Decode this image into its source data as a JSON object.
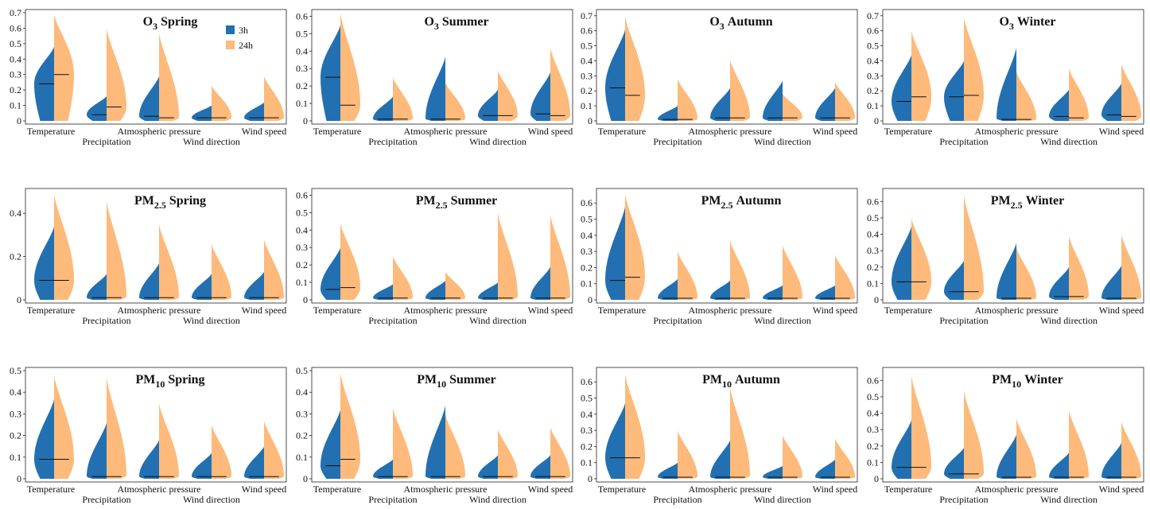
{
  "legend": {
    "entries": [
      {
        "label": "3h",
        "color": "#2270b1"
      },
      {
        "label": "24h",
        "color": "#fdba7b"
      }
    ]
  },
  "chart_data": [
    {
      "type": "violin",
      "title": {
        "main": "O",
        "sub": "3",
        "season": "Spring"
      },
      "categories": [
        "Temperature",
        "Precipitation",
        "Atmospheric pressure",
        "Wind direction",
        "Wind speed"
      ],
      "yticks": [
        "0",
        "0.1",
        "0.2",
        "0.3",
        "0.4",
        "0.5",
        "0.6",
        "0.7"
      ],
      "ylim": [
        0,
        0.7
      ],
      "series": [
        {
          "name": "3h",
          "max": [
            0.48,
            0.16,
            0.29,
            0.1,
            0.12
          ],
          "median": [
            0.24,
            0.04,
            0.03,
            0.02,
            0.02
          ]
        },
        {
          "name": "24h",
          "max": [
            0.69,
            0.6,
            0.57,
            0.23,
            0.29
          ],
          "median": [
            0.3,
            0.09,
            0.02,
            0.02,
            0.02
          ]
        }
      ]
    },
    {
      "type": "violin",
      "title": {
        "main": "O",
        "sub": "3",
        "season": "Summer"
      },
      "categories": [
        "Temperature",
        "Precipitation",
        "Atmospheric pressure",
        "Wind direction",
        "Wind speed"
      ],
      "yticks": [
        "0",
        "0.1",
        "0.2",
        "0.3",
        "0.4",
        "0.5",
        "0.6"
      ],
      "ylim": [
        0,
        0.62
      ],
      "series": [
        {
          "name": "3h",
          "max": [
            0.55,
            0.14,
            0.37,
            0.18,
            0.28
          ],
          "median": [
            0.25,
            0.01,
            0.01,
            0.03,
            0.04
          ]
        },
        {
          "name": "24h",
          "max": [
            0.62,
            0.25,
            0.22,
            0.29,
            0.42
          ],
          "median": [
            0.09,
            0.01,
            0.01,
            0.03,
            0.03
          ]
        }
      ]
    },
    {
      "type": "violin",
      "title": {
        "main": "O",
        "sub": "3",
        "season": "Autumn"
      },
      "categories": [
        "Temperature",
        "Precipitation",
        "Atmospheric pressure",
        "Wind direction",
        "Wind speed"
      ],
      "yticks": [
        "0",
        "0.1",
        "0.2",
        "0.3",
        "0.4",
        "0.5",
        "0.6",
        "0.7"
      ],
      "ylim": [
        0,
        0.72
      ],
      "series": [
        {
          "name": "3h",
          "max": [
            0.61,
            0.1,
            0.22,
            0.27,
            0.22
          ],
          "median": [
            0.22,
            0.01,
            0.02,
            0.02,
            0.02
          ]
        },
        {
          "name": "24h",
          "max": [
            0.7,
            0.28,
            0.41,
            0.18,
            0.26
          ],
          "median": [
            0.17,
            0.01,
            0.02,
            0.02,
            0.02
          ]
        }
      ]
    },
    {
      "type": "violin",
      "title": {
        "main": "O",
        "sub": "3",
        "season": "Winter"
      },
      "categories": [
        "Temperature",
        "Precipitation",
        "Atmospheric pressure",
        "Wind direction",
        "Wind speed"
      ],
      "yticks": [
        "0",
        "0.1",
        "0.2",
        "0.3",
        "0.4",
        "0.5",
        "0.6",
        "0.7"
      ],
      "ylim": [
        0,
        0.72
      ],
      "series": [
        {
          "name": "3h",
          "max": [
            0.44,
            0.4,
            0.49,
            0.21,
            0.25
          ],
          "median": [
            0.13,
            0.16,
            0.01,
            0.03,
            0.04
          ]
        },
        {
          "name": "24h",
          "max": [
            0.6,
            0.69,
            0.33,
            0.35,
            0.38
          ],
          "median": [
            0.16,
            0.17,
            0.01,
            0.02,
            0.03
          ]
        }
      ]
    },
    {
      "type": "violin",
      "title": {
        "main": "PM",
        "sub": "2.5",
        "season": "Spring"
      },
      "categories": [
        "Temperature",
        "Precipitation",
        "Atmospheric pressure",
        "Wind direction",
        "Wind speed"
      ],
      "yticks": [
        "0",
        "0.2",
        "0.4"
      ],
      "ylim": [
        0,
        0.5
      ],
      "series": [
        {
          "name": "3h",
          "max": [
            0.34,
            0.12,
            0.17,
            0.12,
            0.13
          ],
          "median": [
            0.09,
            0.01,
            0.01,
            0.01,
            0.01
          ]
        },
        {
          "name": "24h",
          "max": [
            0.49,
            0.46,
            0.35,
            0.26,
            0.28
          ],
          "median": [
            0.09,
            0.01,
            0.01,
            0.01,
            0.01
          ]
        }
      ]
    },
    {
      "type": "violin",
      "title": {
        "main": "PM",
        "sub": "2.5",
        "season": "Summer"
      },
      "categories": [
        "Temperature",
        "Precipitation",
        "Atmospheric pressure",
        "Wind direction",
        "Wind speed"
      ],
      "yticks": [
        "0",
        "0.1",
        "0.2",
        "0.3",
        "0.4",
        "0.5",
        "0.6"
      ],
      "ylim": [
        0,
        0.62
      ],
      "series": [
        {
          "name": "3h",
          "max": [
            0.3,
            0.09,
            0.11,
            0.1,
            0.19
          ],
          "median": [
            0.06,
            0.01,
            0.01,
            0.01,
            0.01
          ]
        },
        {
          "name": "24h",
          "max": [
            0.44,
            0.25,
            0.16,
            0.5,
            0.49
          ],
          "median": [
            0.07,
            0.01,
            0.01,
            0.01,
            0.01
          ]
        }
      ]
    },
    {
      "type": "violin",
      "title": {
        "main": "PM",
        "sub": "2.5",
        "season": "Autumn"
      },
      "categories": [
        "Temperature",
        "Precipitation",
        "Atmospheric pressure",
        "Wind direction",
        "Wind speed"
      ],
      "yticks": [
        "0",
        "0.1",
        "0.2",
        "0.3",
        "0.4",
        "0.5",
        "0.6"
      ],
      "ylim": [
        0,
        0.67
      ],
      "series": [
        {
          "name": "3h",
          "max": [
            0.58,
            0.13,
            0.12,
            0.09,
            0.09
          ],
          "median": [
            0.12,
            0.01,
            0.01,
            0.01,
            0.01
          ]
        },
        {
          "name": "24h",
          "max": [
            0.66,
            0.3,
            0.37,
            0.34,
            0.28
          ],
          "median": [
            0.14,
            0.01,
            0.01,
            0.01,
            0.01
          ]
        }
      ]
    },
    {
      "type": "violin",
      "title": {
        "main": "PM",
        "sub": "2.5",
        "season": "Winter"
      },
      "categories": [
        "Temperature",
        "Precipitation",
        "Atmospheric pressure",
        "Wind direction",
        "Wind speed"
      ],
      "yticks": [
        "0",
        "0.1",
        "0.2",
        "0.3",
        "0.4",
        "0.5",
        "0.6"
      ],
      "ylim": [
        0,
        0.66
      ],
      "series": [
        {
          "name": "3h",
          "max": [
            0.45,
            0.24,
            0.35,
            0.2,
            0.21
          ],
          "median": [
            0.11,
            0.05,
            0.01,
            0.02,
            0.01
          ]
        },
        {
          "name": "24h",
          "max": [
            0.5,
            0.64,
            0.32,
            0.39,
            0.4
          ],
          "median": [
            0.11,
            0.05,
            0.01,
            0.02,
            0.01
          ]
        }
      ]
    },
    {
      "type": "violin",
      "title": {
        "main": "PM",
        "sub": "10",
        "season": "Spring"
      },
      "categories": [
        "Temperature",
        "Precipitation",
        "Atmospheric pressure",
        "Wind direction",
        "Wind speed"
      ],
      "yticks": [
        "0",
        "0.1",
        "0.2",
        "0.3",
        "0.4",
        "0.5"
      ],
      "ylim": [
        0,
        0.5
      ],
      "series": [
        {
          "name": "3h",
          "max": [
            0.37,
            0.26,
            0.18,
            0.12,
            0.15
          ],
          "median": [
            0.09,
            0.01,
            0.01,
            0.01,
            0.01
          ]
        },
        {
          "name": "24h",
          "max": [
            0.48,
            0.47,
            0.35,
            0.25,
            0.27
          ],
          "median": [
            0.09,
            0.01,
            0.01,
            0.01,
            0.01
          ]
        }
      ]
    },
    {
      "type": "violin",
      "title": {
        "main": "PM",
        "sub": "10",
        "season": "Summer"
      },
      "categories": [
        "Temperature",
        "Precipitation",
        "Atmospheric pressure",
        "Wind direction",
        "Wind speed"
      ],
      "yticks": [
        "0",
        "0.1",
        "0.2",
        "0.3",
        "0.4",
        "0.5"
      ],
      "ylim": [
        0,
        0.5
      ],
      "series": [
        {
          "name": "3h",
          "max": [
            0.32,
            0.09,
            0.34,
            0.11,
            0.11
          ],
          "median": [
            0.06,
            0.01,
            0.01,
            0.01,
            0.01
          ]
        },
        {
          "name": "24h",
          "max": [
            0.49,
            0.33,
            0.3,
            0.23,
            0.24
          ],
          "median": [
            0.09,
            0.01,
            0.01,
            0.01,
            0.01
          ]
        }
      ]
    },
    {
      "type": "violin",
      "title": {
        "main": "PM",
        "sub": "10",
        "season": "Autumn"
      },
      "categories": [
        "Temperature",
        "Precipitation",
        "Atmospheric pressure",
        "Wind direction",
        "Wind speed"
      ],
      "yticks": [
        "0",
        "0.1",
        "0.2",
        "0.3",
        "0.4",
        "0.5",
        "0.6"
      ],
      "ylim": [
        0,
        0.67
      ],
      "series": [
        {
          "name": "3h",
          "max": [
            0.47,
            0.1,
            0.24,
            0.08,
            0.12
          ],
          "median": [
            0.13,
            0.01,
            0.01,
            0.01,
            0.01
          ]
        },
        {
          "name": "24h",
          "max": [
            0.65,
            0.3,
            0.57,
            0.27,
            0.25
          ],
          "median": [
            0.13,
            0.01,
            0.01,
            0.01,
            0.01
          ]
        }
      ]
    },
    {
      "type": "violin",
      "title": {
        "main": "PM",
        "sub": "10",
        "season": "Winter"
      },
      "categories": [
        "Temperature",
        "Precipitation",
        "Atmospheric pressure",
        "Wind direction",
        "Wind speed"
      ],
      "yticks": [
        "0",
        "0.1",
        "0.2",
        "0.3",
        "0.4",
        "0.5",
        "0.6"
      ],
      "ylim": [
        0,
        0.66
      ],
      "series": [
        {
          "name": "3h",
          "max": [
            0.36,
            0.19,
            0.27,
            0.16,
            0.22
          ],
          "median": [
            0.07,
            0.03,
            0.01,
            0.01,
            0.01
          ]
        },
        {
          "name": "24h",
          "max": [
            0.63,
            0.54,
            0.37,
            0.42,
            0.35
          ],
          "median": [
            0.07,
            0.03,
            0.01,
            0.01,
            0.01
          ]
        }
      ]
    }
  ]
}
